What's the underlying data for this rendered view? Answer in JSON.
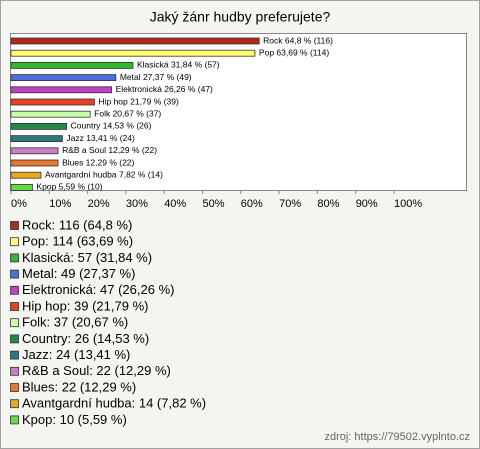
{
  "chart_data": {
    "type": "barh",
    "title": "Jaký žánr hudby preferujete?",
    "categories": [
      "Rock",
      "Pop",
      "Klasická",
      "Metal",
      "Elektronická",
      "Hip hop",
      "Folk",
      "Country",
      "Jazz",
      "R&B a Soul",
      "Blues",
      "Avantgardní hudba",
      "Kpop"
    ],
    "values": [
      64.8,
      63.69,
      31.84,
      27.37,
      26.26,
      21.79,
      20.67,
      14.53,
      13.41,
      12.29,
      12.29,
      7.82,
      5.59
    ],
    "value_labels": [
      "Rock 64,8 % (116)",
      "Pop 63,69 % (114)",
      "Klasická 31,84 % (57)",
      "Metal 27,37 % (49)",
      "Elektronická 26,26 % (47)",
      "Hip hop 21,79 % (39)",
      "Folk 20,67 % (37)",
      "Country 14,53 % (26)",
      "Jazz 13,41 % (24)",
      "R&B a Soul 12,29 % (22)",
      "Blues 12,29 % (22)",
      "Avantgardní hudba 7,82 % (14)",
      "Kpop 5,59 % (10)"
    ],
    "legend_labels": [
      "Rock: 116 (64,8 %)",
      "Pop: 114 (63,69 %)",
      "Klasická: 57 (31,84 %)",
      "Metal: 49 (27,37 %)",
      "Elektronická: 47 (26,26 %)",
      "Hip hop: 39 (21,79 %)",
      "Folk: 37 (20,67 %)",
      "Country: 26 (14,53 %)",
      "Jazz: 24 (13,41 %)",
      "R&B a Soul: 22 (12,29 %)",
      "Blues: 22 (12,29 %)",
      "Avantgardní hudba: 14 (7,82 %)",
      "Kpop: 10 (5,59 %)"
    ],
    "colors": [
      "#b02a1a",
      "#ffff70",
      "#30b830",
      "#4a6ee0",
      "#c040c8",
      "#e84020",
      "#c8ffa8",
      "#208a48",
      "#2a7a80",
      "#c880c8",
      "#e87830",
      "#e8a820",
      "#60e040"
    ],
    "xlim": [
      0,
      100
    ],
    "xticks": [
      {
        "value": 0,
        "label": "0%"
      },
      {
        "value": 10,
        "label": "10%"
      },
      {
        "value": 20,
        "label": "20%"
      },
      {
        "value": 30,
        "label": "30%"
      },
      {
        "value": 40,
        "label": "40%"
      },
      {
        "value": 50,
        "label": "50%"
      },
      {
        "value": 60,
        "label": "60%"
      },
      {
        "value": 70,
        "label": "70%"
      },
      {
        "value": 80,
        "label": "80%"
      },
      {
        "value": 90,
        "label": "90%"
      },
      {
        "value": 100,
        "label": "100%"
      }
    ],
    "source": "zdroj: https://79502.vyplnto.cz"
  }
}
